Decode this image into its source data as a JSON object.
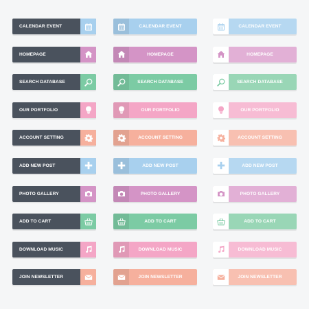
{
  "buttons": [
    {
      "label": "CALENDAR EVENT",
      "icon": "calendar-icon",
      "color": "#a8d0ee",
      "light": "#b6d8f1"
    },
    {
      "label": "HOMEPAGE",
      "icon": "home-icon",
      "color": "#d494c6",
      "light": "#e2b0d6"
    },
    {
      "label": "SEARCH DATABASE",
      "icon": "search-icon",
      "color": "#7ccba4",
      "light": "#99d6b6"
    },
    {
      "label": "OUR PORTFOLIO",
      "icon": "bulb-icon",
      "color": "#f4a6c6",
      "light": "#f7bcd4"
    },
    {
      "label": "ACCOUNT SETTING",
      "icon": "gear-icon",
      "color": "#f6b09d",
      "light": "#f8c0b1"
    },
    {
      "label": "ADD NEW POST",
      "icon": "plus-icon",
      "color": "#a8d0ee",
      "light": "#b6d8f1"
    },
    {
      "label": "PHOTO GALLERY",
      "icon": "camera-icon",
      "color": "#d494c6",
      "light": "#e2b0d6"
    },
    {
      "label": "ADD TO CART",
      "icon": "basket-icon",
      "color": "#7ccba4",
      "light": "#99d6b6"
    },
    {
      "label": "DOWNLOAD MUSIC",
      "icon": "music-icon",
      "color": "#f4a6c6",
      "light": "#f7bcd4"
    },
    {
      "label": "JOIN NEWSLETTER",
      "icon": "envelope-icon",
      "color": "#f6b09d",
      "light": "#f8c0b1"
    }
  ]
}
